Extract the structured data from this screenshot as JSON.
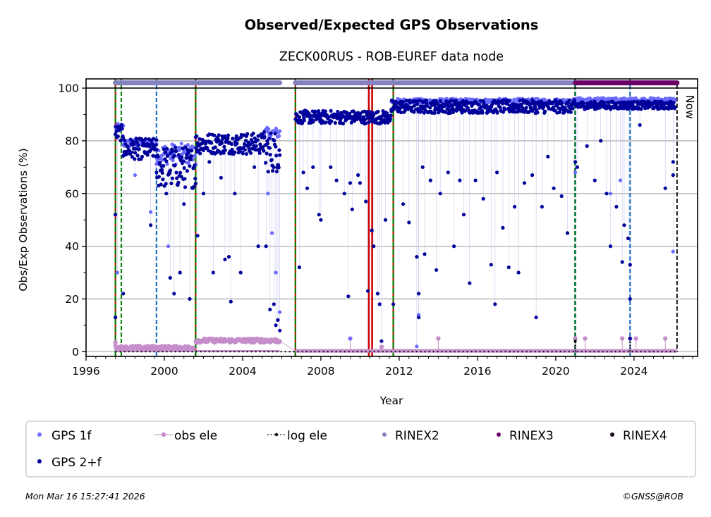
{
  "chart_data": {
    "type": "scatter",
    "title": "Observed/Expected GPS Observations",
    "subtitle": "ZECK00RUS - ROB-EUREF data node",
    "xlabel": "Year",
    "ylabel": "Obs/Exp Observations (%)",
    "xlim": [
      1996.0,
      2027.25
    ],
    "ylim": [
      -1.8,
      103.5
    ],
    "xticks": [
      1996,
      2000,
      2004,
      2008,
      2012,
      2016,
      2020,
      2024
    ],
    "xtick_labels": [
      "1996",
      "2000",
      "2004",
      "2008",
      "2012",
      "2016",
      "2020",
      "2024"
    ],
    "yticks": [
      0,
      20,
      40,
      60,
      80,
      100
    ],
    "ytick_labels": [
      "0",
      "20",
      "40",
      "60",
      "80",
      "100"
    ],
    "grid": "horizontal",
    "now_label": "Now",
    "now_year": 2026.2,
    "legend": {
      "placement": "below",
      "entries": [
        {
          "label": "GPS 1f",
          "color": "#6b6bff",
          "marker": "dot"
        },
        {
          "label": "obs ele",
          "color": "#c58ecb",
          "marker": "line-dot"
        },
        {
          "label": "log ele",
          "color": "#000000",
          "marker": "dotted-dot"
        },
        {
          "label": "RINEX2",
          "color": "#8581be",
          "marker": "dot"
        },
        {
          "label": "RINEX3",
          "color": "#6a0065",
          "marker": "dot"
        },
        {
          "label": "RINEX4",
          "color": "#1a0a1e",
          "marker": "dot"
        },
        {
          "label": "GPS 2+f",
          "color": "#00009a",
          "marker": "dot"
        }
      ]
    },
    "series": [
      {
        "name": "GPS 2+f",
        "color": "#00009a",
        "segments": [
          {
            "x0": 1997.5,
            "x1": 1997.9,
            "level": 83,
            "spread": 3
          },
          {
            "x0": 1997.9,
            "x1": 1999.6,
            "level": 77,
            "spread": 4
          },
          {
            "x0": 1999.6,
            "x1": 2001.6,
            "level": 70,
            "spread": 8
          },
          {
            "x0": 2001.6,
            "x1": 2005.1,
            "level": 79,
            "spread": 4
          },
          {
            "x0": 2005.1,
            "x1": 2005.9,
            "level": 76,
            "spread": 8
          },
          {
            "x0": 2006.7,
            "x1": 2011.6,
            "level": 89,
            "spread": 2.5
          },
          {
            "x0": 2011.6,
            "x1": 2021.0,
            "level": 93,
            "spread": 2.5
          },
          {
            "x0": 2021.0,
            "x1": 2026.1,
            "level": 93.5,
            "spread": 1.5
          }
        ],
        "outliers": [
          [
            1997.5,
            52
          ],
          [
            1997.5,
            13
          ],
          [
            1997.9,
            22
          ],
          [
            1998.7,
            73
          ],
          [
            1999.3,
            48
          ],
          [
            1999.6,
            68
          ],
          [
            2000.1,
            60
          ],
          [
            2000.3,
            28
          ],
          [
            2000.5,
            22
          ],
          [
            2000.8,
            30
          ],
          [
            2001.0,
            56
          ],
          [
            2001.3,
            20
          ],
          [
            2001.7,
            44
          ],
          [
            2002.0,
            60
          ],
          [
            2002.3,
            72
          ],
          [
            2002.5,
            30
          ],
          [
            2002.9,
            66
          ],
          [
            2003.1,
            35
          ],
          [
            2003.4,
            19
          ],
          [
            2003.3,
            36
          ],
          [
            2003.6,
            60
          ],
          [
            2003.9,
            30
          ],
          [
            2004.2,
            75
          ],
          [
            2004.6,
            70
          ],
          [
            2004.8,
            40
          ],
          [
            2005.2,
            40
          ],
          [
            2005.4,
            16
          ],
          [
            2005.6,
            18
          ],
          [
            2005.7,
            10
          ],
          [
            2005.8,
            12
          ],
          [
            2005.9,
            8
          ],
          [
            2006.9,
            32
          ],
          [
            2007.1,
            68
          ],
          [
            2007.3,
            62
          ],
          [
            2007.6,
            70
          ],
          [
            2007.9,
            52
          ],
          [
            2008.0,
            50
          ],
          [
            2008.5,
            70
          ],
          [
            2008.8,
            65
          ],
          [
            2009.2,
            60
          ],
          [
            2009.4,
            21
          ],
          [
            2009.5,
            64
          ],
          [
            2009.6,
            54
          ],
          [
            2009.9,
            67
          ],
          [
            2010.0,
            64
          ],
          [
            2010.3,
            57
          ],
          [
            2010.4,
            23
          ],
          [
            2010.6,
            46
          ],
          [
            2010.7,
            40
          ],
          [
            2010.9,
            22
          ],
          [
            2011.0,
            18
          ],
          [
            2011.1,
            4
          ],
          [
            2011.3,
            50
          ],
          [
            2011.7,
            18
          ],
          [
            2012.2,
            56
          ],
          [
            2012.5,
            49
          ],
          [
            2012.9,
            36
          ],
          [
            2013.0,
            22
          ],
          [
            2013.0,
            13
          ],
          [
            2013.2,
            70
          ],
          [
            2013.3,
            37
          ],
          [
            2013.6,
            65
          ],
          [
            2013.9,
            31
          ],
          [
            2014.1,
            60
          ],
          [
            2014.5,
            68
          ],
          [
            2014.8,
            40
          ],
          [
            2015.1,
            65
          ],
          [
            2015.3,
            52
          ],
          [
            2015.6,
            26
          ],
          [
            2015.9,
            65
          ],
          [
            2016.3,
            58
          ],
          [
            2016.7,
            33
          ],
          [
            2016.9,
            18
          ],
          [
            2017.0,
            68
          ],
          [
            2017.3,
            47
          ],
          [
            2017.6,
            32
          ],
          [
            2017.9,
            55
          ],
          [
            2018.1,
            30
          ],
          [
            2018.4,
            64
          ],
          [
            2018.8,
            67
          ],
          [
            2019.0,
            13
          ],
          [
            2019.3,
            55
          ],
          [
            2019.6,
            74
          ],
          [
            2019.9,
            62
          ],
          [
            2020.3,
            59
          ],
          [
            2020.6,
            45
          ],
          [
            2021.0,
            72
          ],
          [
            2021.1,
            70
          ],
          [
            2021.6,
            78
          ],
          [
            2022.0,
            65
          ],
          [
            2022.3,
            80
          ],
          [
            2022.6,
            60
          ],
          [
            2022.8,
            40
          ],
          [
            2023.1,
            55
          ],
          [
            2023.4,
            34
          ],
          [
            2023.5,
            48
          ],
          [
            2023.7,
            43
          ],
          [
            2023.8,
            33
          ],
          [
            2023.8,
            20
          ],
          [
            2023.8,
            5
          ],
          [
            2024.3,
            86
          ],
          [
            2025.6,
            62
          ],
          [
            2026.0,
            67
          ],
          [
            2026.0,
            72
          ]
        ]
      },
      {
        "name": "GPS 1f",
        "color": "#6b6bff",
        "segments": [
          {
            "x0": 1997.5,
            "x1": 1997.9,
            "level": 85,
            "spread": 1.5
          },
          {
            "x0": 1997.9,
            "x1": 1999.6,
            "level": 79,
            "spread": 1.5
          },
          {
            "x0": 1999.6,
            "x1": 2001.6,
            "level": 75,
            "spread": 4
          },
          {
            "x0": 2005.1,
            "x1": 2005.9,
            "level": 83,
            "spread": 2
          },
          {
            "x0": 2011.6,
            "x1": 2021.0,
            "level": 95,
            "spread": 1
          },
          {
            "x0": 2021.0,
            "x1": 2026.1,
            "level": 95.5,
            "spread": 0.8
          }
        ],
        "outliers": [
          [
            1997.6,
            30
          ],
          [
            1998.5,
            67
          ],
          [
            1999.3,
            53
          ],
          [
            2000.2,
            40
          ],
          [
            2005.3,
            60
          ],
          [
            2005.5,
            45
          ],
          [
            2005.7,
            30
          ],
          [
            2005.9,
            15
          ],
          [
            2009.5,
            5
          ],
          [
            2012.9,
            2
          ],
          [
            2013.0,
            14
          ],
          [
            2021.0,
            68
          ],
          [
            2022.8,
            60
          ],
          [
            2023.3,
            65
          ],
          [
            2026.0,
            38
          ]
        ]
      },
      {
        "name": "obs ele",
        "color": "#c58ecb",
        "segments": [
          {
            "x0": 1997.5,
            "x1": 2001.5,
            "level": 1.5,
            "spread": 0.7
          },
          {
            "x0": 2001.6,
            "x1": 2005.9,
            "level": 4.2,
            "spread": 0.8
          },
          {
            "x0": 2006.7,
            "x1": 2026.2,
            "level": 0.3,
            "spread": 0
          }
        ],
        "spikes": [
          [
            1997.5,
            3.5
          ],
          [
            2009.5,
            5
          ],
          [
            2011.1,
            1.8
          ],
          [
            2014.0,
            5
          ],
          [
            2021.0,
            5
          ],
          [
            2021.5,
            5
          ],
          [
            2023.4,
            5
          ],
          [
            2023.8,
            5
          ],
          [
            2024.1,
            5
          ],
          [
            2025.6,
            5
          ]
        ]
      },
      {
        "name": "log ele",
        "color": "#000000",
        "x0": 1997.5,
        "x1": 2026.2,
        "level": 0,
        "spikes": [
          [
            2021.0,
            4
          ],
          [
            2023.8,
            5
          ]
        ]
      }
    ],
    "rinex_bars": [
      {
        "name": "RINEX2",
        "color": "#8581be",
        "x0": 1997.5,
        "x1": 2005.9,
        "y": 102
      },
      {
        "name": "RINEX2",
        "color": "#8581be",
        "x0": 2006.7,
        "x1": 2021.0,
        "y": 102
      },
      {
        "name": "RINEX3",
        "color": "#6a0065",
        "x0": 2021.0,
        "x1": 2026.2,
        "y": 102
      }
    ],
    "event_lines": [
      {
        "year": 1997.5,
        "style": "red-green"
      },
      {
        "year": 1997.8,
        "style": "green-dashed"
      },
      {
        "year": 1999.6,
        "style": "blue-dashed"
      },
      {
        "year": 2001.6,
        "style": "red-green"
      },
      {
        "year": 2006.7,
        "style": "red-green"
      },
      {
        "year": 2010.45,
        "style": "red-solid"
      },
      {
        "year": 2010.62,
        "style": "red-solid"
      },
      {
        "year": 2011.7,
        "style": "red-green"
      },
      {
        "year": 2021.0,
        "style": "green-blue-dashed"
      },
      {
        "year": 2023.8,
        "style": "blue-dashed"
      },
      {
        "year": 2026.2,
        "style": "black-dashed"
      }
    ]
  },
  "footer": {
    "timestamp": "Mon Mar 16 15:27:41 2026",
    "credit": "©GNSS@ROB"
  }
}
